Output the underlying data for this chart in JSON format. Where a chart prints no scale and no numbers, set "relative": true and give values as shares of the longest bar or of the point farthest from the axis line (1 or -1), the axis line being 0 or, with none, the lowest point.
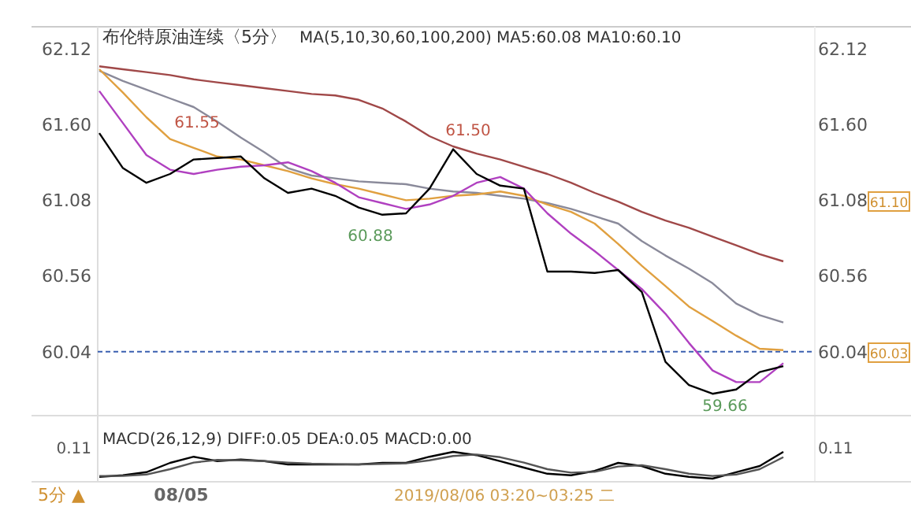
{
  "chart_data": [
    {
      "type": "line",
      "title": "布伦特原油连续〈5分〉",
      "subtitle": "MA(5,10,30,60,100,200) MA5:60.08 MA10:60.10",
      "categories": [
        null,
        null,
        null,
        null,
        null,
        null,
        null,
        null,
        null,
        null,
        null,
        null,
        null,
        null,
        null,
        null,
        null,
        null,
        null,
        null,
        null,
        null,
        null,
        null,
        null,
        null,
        null,
        null,
        null,
        null
      ],
      "ylim": [
        59.6,
        62.25
      ],
      "yticks": [
        60.04,
        60.56,
        61.08,
        {
          "value": 61.6,
          "label": "61.60"
        },
        62.12
      ],
      "y2lim": [
        59.6,
        62.25
      ],
      "y2ticks": [
        60.04,
        60.56,
        61.08,
        {
          "value": 61.6,
          "label": "61.60"
        },
        62.12
      ],
      "tick_labels": "y",
      "legend": false,
      "series": [
        {
          "color": "#a04848",
          "values": [
            62.0,
            61.98,
            61.96,
            61.94,
            61.91,
            61.89,
            61.87,
            61.85,
            61.83,
            61.81,
            61.8,
            61.77,
            61.71,
            61.62,
            61.52,
            61.45,
            61.4,
            61.36,
            61.31,
            61.26,
            61.2,
            61.13,
            61.07,
            61.0,
            60.94,
            60.89,
            60.83,
            60.77,
            60.71,
            60.66
          ]
        },
        {
          "color": "#8a8a9a",
          "values": [
            61.97,
            61.9,
            61.84,
            61.78,
            61.72,
            61.62,
            61.51,
            61.41,
            61.3,
            61.25,
            61.23,
            61.21,
            61.2,
            61.19,
            61.16,
            61.14,
            61.13,
            61.11,
            61.09,
            61.06,
            61.02,
            60.97,
            60.92,
            60.8,
            60.7,
            60.61,
            60.51,
            60.37,
            60.29,
            60.24
          ]
        },
        {
          "color": "#e0a040",
          "values": [
            61.98,
            61.82,
            61.65,
            61.5,
            61.44,
            61.38,
            61.36,
            61.32,
            61.28,
            61.23,
            61.19,
            61.16,
            61.12,
            61.08,
            61.09,
            61.11,
            61.12,
            61.14,
            61.11,
            61.05,
            61.0,
            60.92,
            60.78,
            60.63,
            60.49,
            60.35,
            60.25,
            60.15,
            60.06,
            60.05
          ]
        },
        {
          "color": "#b040c0",
          "values": [
            61.83,
            61.61,
            61.39,
            61.29,
            61.26,
            61.29,
            61.31,
            61.32,
            61.34,
            61.28,
            61.2,
            61.1,
            61.06,
            61.02,
            61.05,
            61.11,
            61.2,
            61.24,
            61.16,
            60.99,
            60.85,
            60.73,
            60.6,
            60.47,
            60.3,
            60.1,
            59.91,
            59.83,
            59.83,
            59.96
          ]
        },
        {
          "color": "#000000",
          "values": [
            61.54,
            61.3,
            61.2,
            61.26,
            61.36,
            61.37,
            61.38,
            61.23,
            61.13,
            61.16,
            61.11,
            61.03,
            60.98,
            60.99,
            61.16,
            61.43,
            61.26,
            61.18,
            61.16,
            60.59,
            60.59,
            60.58,
            60.6,
            60.45,
            59.97,
            59.81,
            59.75,
            59.78,
            59.9,
            59.94
          ]
        }
      ],
      "ref_lines": [
        {
          "axis": "y",
          "value": 60.04,
          "color": "#3a5fb0",
          "line_style": "dashed"
        }
      ],
      "annotations": [
        "61.55",
        "61.50",
        "60.88",
        "59.66",
        "61.10",
        "60.03"
      ]
    },
    {
      "type": "line",
      "title": "MACD(26,12,9) DIFF:0.05 DEA:0.05 MACD:0.00",
      "relative": true,
      "categories": [
        null,
        null,
        null,
        null,
        null,
        null,
        null,
        null,
        null,
        null,
        null,
        null,
        null,
        null,
        null,
        null,
        null,
        null,
        null,
        null,
        null,
        null,
        null,
        null,
        null,
        null,
        null,
        null,
        null,
        null
      ],
      "series": [
        {
          "color": "#000000",
          "values": [
            0.06,
            0.12,
            0.24,
            0.59,
            0.82,
            0.65,
            0.71,
            0.65,
            0.53,
            0.53,
            0.53,
            0.53,
            0.59,
            0.59,
            0.82,
            1,
            0.88,
            0.65,
            0.41,
            0.18,
            0.12,
            0.29,
            0.59,
            0.47,
            0.18,
            0.06,
            0,
            0.24,
            0.47,
            1
          ]
        },
        {
          "color": "#555555",
          "values": [
            0.1,
            0.1,
            0.15,
            0.35,
            0.6,
            0.7,
            0.68,
            0.65,
            0.6,
            0.56,
            0.54,
            0.53,
            0.55,
            0.57,
            0.68,
            0.85,
            0.9,
            0.8,
            0.6,
            0.35,
            0.22,
            0.25,
            0.45,
            0.5,
            0.35,
            0.18,
            0.1,
            0.15,
            0.35,
            0.8
          ]
        }
      ],
      "annotations": [
        "0.11",
        "0.11",
        "08/05",
        "2019/08/06 03:20~03:25 二",
        "5分 ▲"
      ]
    }
  ]
}
